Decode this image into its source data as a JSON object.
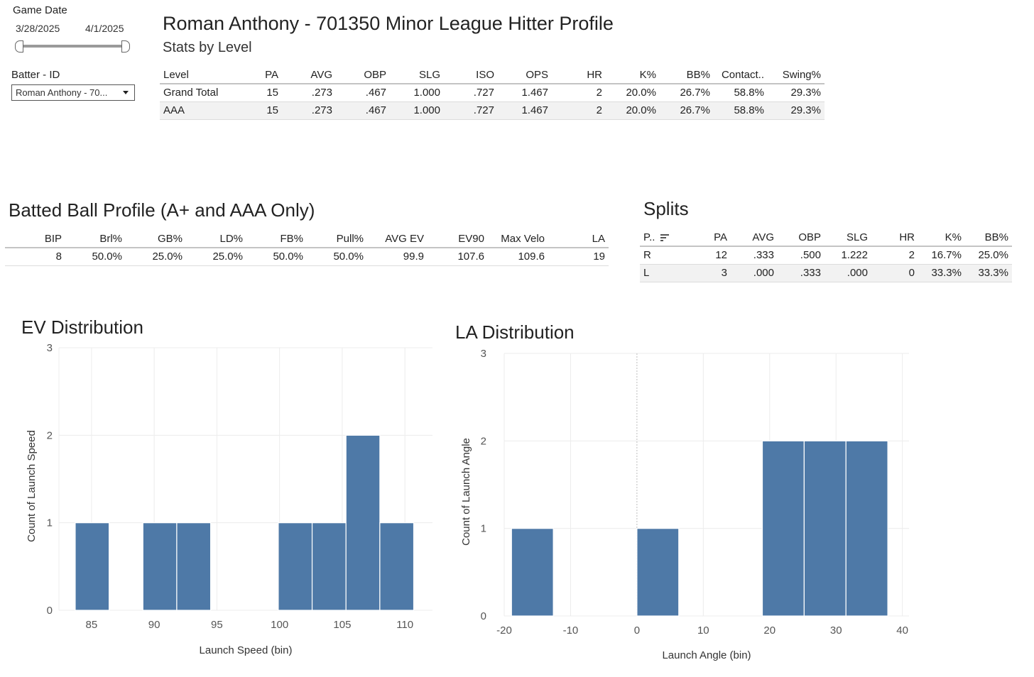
{
  "filters": {
    "game_date_label": "Game Date",
    "date_start": "3/28/2025",
    "date_end": "4/1/2025",
    "batter_label": "Batter - ID",
    "batter_value": "Roman Anthony - 70..."
  },
  "header": {
    "title": "Roman Anthony - 701350 Minor League Hitter Profile",
    "subtitle": "Stats by Level"
  },
  "level_table": {
    "columns": [
      "Level",
      "PA",
      "AVG",
      "OBP",
      "SLG",
      "ISO",
      "OPS",
      "HR",
      "K%",
      "BB%",
      "Contact..",
      "Swing%"
    ],
    "rows": [
      [
        "Grand Total",
        "15",
        ".273",
        ".467",
        "1.000",
        ".727",
        "1.467",
        "2",
        "20.0%",
        "26.7%",
        "58.8%",
        "29.3%"
      ],
      [
        "AAA",
        "15",
        ".273",
        ".467",
        "1.000",
        ".727",
        "1.467",
        "2",
        "20.0%",
        "26.7%",
        "58.8%",
        "29.3%"
      ]
    ]
  },
  "batted_ball": {
    "title": "Batted Ball Profile (A+ and AAA Only)",
    "columns": [
      "BIP",
      "Brl%",
      "GB%",
      "LD%",
      "FB%",
      "Pull%",
      "AVG EV",
      "EV90",
      "Max Velo",
      "LA"
    ],
    "rows": [
      [
        "8",
        "50.0%",
        "25.0%",
        "25.0%",
        "50.0%",
        "50.0%",
        "99.9",
        "107.6",
        "109.6",
        "19"
      ]
    ]
  },
  "splits": {
    "title": "Splits",
    "columns": [
      "P..",
      "PA",
      "AVG",
      "OBP",
      "SLG",
      "HR",
      "K%",
      "BB%"
    ],
    "rows": [
      [
        "R",
        "12",
        ".333",
        ".500",
        "1.222",
        "2",
        "16.7%",
        "25.0%"
      ],
      [
        "L",
        "3",
        ".000",
        ".333",
        ".000",
        "0",
        "33.3%",
        "33.3%"
      ]
    ]
  },
  "chart_data": [
    {
      "type": "bar",
      "title": "EV Distribution",
      "xlabel": "Launch Speed (bin)",
      "ylabel": "Count of Launch Speed",
      "bin_width": 2.7,
      "bins": [
        {
          "start": 83.7,
          "count": 1
        },
        {
          "start": 89.1,
          "count": 1
        },
        {
          "start": 91.8,
          "count": 1
        },
        {
          "start": 99.9,
          "count": 1
        },
        {
          "start": 102.6,
          "count": 1
        },
        {
          "start": 105.3,
          "count": 2
        },
        {
          "start": 108.0,
          "count": 1
        }
      ],
      "xlim": [
        82.4,
        112.2
      ],
      "ylim": [
        0,
        3
      ],
      "x_ticks": [
        85,
        90,
        95,
        100,
        105,
        110
      ],
      "y_ticks": [
        0,
        1,
        2,
        3
      ],
      "color": "#4e79a7"
    },
    {
      "type": "bar",
      "title": "LA Distribution",
      "xlabel": "Launch Angle (bin)",
      "ylabel": "Count of Launch Angle",
      "bin_width": 6.3,
      "bins": [
        {
          "start": -18.9,
          "count": 1
        },
        {
          "start": 0.0,
          "count": 1
        },
        {
          "start": 18.9,
          "count": 2
        },
        {
          "start": 25.2,
          "count": 2
        },
        {
          "start": 31.5,
          "count": 2
        }
      ],
      "xlim": [
        -20,
        41
      ],
      "ylim": [
        0,
        3
      ],
      "x_ticks": [
        -20,
        -10,
        0,
        10,
        20,
        30,
        40
      ],
      "y_ticks": [
        0,
        1,
        2,
        3
      ],
      "color": "#4e79a7"
    }
  ]
}
